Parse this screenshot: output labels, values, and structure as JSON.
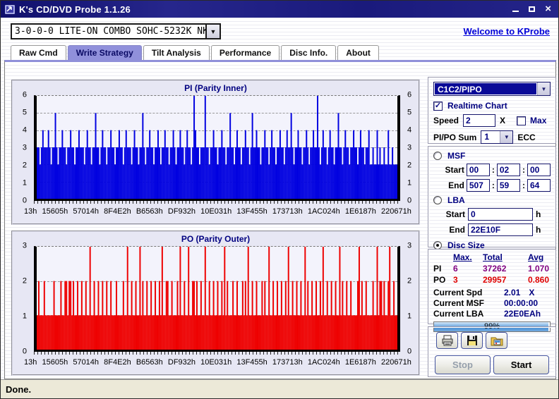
{
  "titlebar": {
    "title": "K's CD/DVD Probe 1.1.26",
    "close_icon": "×"
  },
  "drive_selector": {
    "value": "3-0-0-0 LITE-ON COMBO SOHC-5232K NK07",
    "arrow_icon": "▼"
  },
  "welcome_link": "Welcome to KProbe",
  "tabs": [
    "Raw Cmd",
    "Write Strategy",
    "Tilt Analysis",
    "Performance",
    "Disc Info.",
    "About"
  ],
  "chart_data": [
    {
      "type": "bar",
      "title": "PI (Parity Inner)",
      "color": "#0000e0",
      "ylim": [
        0,
        6
      ],
      "yticks": [
        0,
        1,
        2,
        3,
        4,
        5,
        6
      ],
      "grid": true,
      "x_tick_labels": [
        "13h",
        "15605h",
        "57014h",
        "8F4E2h",
        "B6563h",
        "DF932h",
        "10E031h",
        "13F455h",
        "173713h",
        "1AC024h",
        "1E6187h",
        "220671h"
      ],
      "values": [
        3,
        3,
        2,
        3,
        4,
        3,
        3,
        3,
        4,
        3,
        2,
        3,
        3,
        5,
        3,
        2,
        3,
        3,
        4,
        3,
        3,
        2,
        3,
        3,
        4,
        3,
        3,
        2,
        3,
        3,
        4,
        3,
        3,
        3,
        2,
        3,
        4,
        3,
        3,
        2,
        3,
        3,
        5,
        3,
        3,
        2,
        3,
        4,
        3,
        3,
        2,
        3,
        3,
        4,
        3,
        3,
        2,
        3,
        3,
        4,
        3,
        3,
        2,
        3,
        4,
        3,
        3,
        3,
        2,
        3,
        4,
        3,
        3,
        2,
        3,
        3,
        5,
        3,
        2,
        3,
        3,
        4,
        3,
        3,
        2,
        3,
        3,
        4,
        3,
        2,
        3,
        3,
        4,
        3,
        3,
        2,
        3,
        3,
        4,
        3,
        2,
        3,
        3,
        4,
        3,
        3,
        2,
        3,
        4,
        3,
        3,
        2,
        3,
        6,
        4,
        3,
        3,
        2,
        3,
        3,
        3,
        6,
        3,
        3,
        2,
        3,
        3,
        4,
        3,
        3,
        2,
        3,
        3,
        4,
        3,
        3,
        2,
        3,
        3,
        5,
        3,
        3,
        2,
        3,
        4,
        3,
        3,
        2,
        3,
        3,
        4,
        3,
        3,
        2,
        3,
        5,
        3,
        3,
        4,
        3,
        3,
        2,
        3,
        3,
        4,
        3,
        3,
        2,
        3,
        4,
        3,
        3,
        2,
        3,
        3,
        4,
        3,
        3,
        2,
        3,
        4,
        3,
        3,
        5,
        3,
        2,
        3,
        3,
        4,
        3,
        3,
        2,
        3,
        3,
        4,
        3,
        2,
        3,
        3,
        4,
        3,
        3,
        6,
        3,
        2,
        3,
        4,
        3,
        3,
        2,
        3,
        4,
        3,
        3,
        2,
        3,
        3,
        5,
        3,
        3,
        2,
        3,
        4,
        3,
        3,
        2,
        3,
        3,
        4,
        3,
        3,
        2,
        3,
        4,
        3,
        3,
        2,
        3,
        3,
        4,
        2,
        2,
        3,
        2,
        2,
        4,
        2,
        3,
        2,
        2,
        3,
        2,
        2,
        4,
        2,
        2,
        3,
        2,
        2,
        2
      ]
    },
    {
      "type": "bar",
      "title": "PO (Parity Outer)",
      "color": "#ee0000",
      "ylim": [
        0,
        3
      ],
      "yticks": [
        0,
        1,
        2,
        3
      ],
      "grid": true,
      "x_tick_labels": [
        "13h",
        "15605h",
        "57014h",
        "8F4E2h",
        "B6563h",
        "DF932h",
        "10E031h",
        "13F455h",
        "173713h",
        "1AC024h",
        "1E6187h",
        "220671h"
      ],
      "values": [
        1,
        2,
        1,
        1,
        1,
        2,
        1,
        1,
        1,
        1,
        1,
        1,
        2,
        1,
        1,
        1,
        1,
        2,
        1,
        1,
        2,
        2,
        1,
        2,
        2,
        1,
        2,
        1,
        1,
        2,
        1,
        1,
        2,
        1,
        1,
        2,
        1,
        1,
        3,
        1,
        1,
        2,
        1,
        1,
        2,
        1,
        1,
        2,
        1,
        1,
        2,
        1,
        1,
        2,
        1,
        1,
        1,
        2,
        1,
        1,
        1,
        1,
        2,
        1,
        1,
        3,
        1,
        1,
        2,
        1,
        1,
        2,
        1,
        1,
        3,
        1,
        2,
        1,
        1,
        2,
        1,
        1,
        2,
        1,
        1,
        2,
        1,
        1,
        2,
        1,
        3,
        1,
        1,
        2,
        2,
        1,
        1,
        2,
        1,
        1,
        1,
        2,
        1,
        3,
        1,
        1,
        2,
        1,
        1,
        3,
        1,
        1,
        2,
        2,
        1,
        2,
        1,
        1,
        2,
        1,
        1,
        3,
        1,
        1,
        2,
        1,
        1,
        2,
        1,
        1,
        2,
        1,
        1,
        2,
        1,
        3,
        1,
        2,
        1,
        1,
        1,
        2,
        1,
        1,
        2,
        1,
        1,
        1,
        2,
        1,
        2,
        1,
        3,
        1,
        1,
        2,
        1,
        1,
        2,
        1,
        1,
        1,
        2,
        1,
        2,
        1,
        1,
        3,
        1,
        1,
        2,
        1,
        1,
        2,
        1,
        1,
        2,
        1,
        1,
        2,
        1,
        3,
        1,
        1,
        2,
        1,
        1,
        2,
        1,
        1,
        2,
        1,
        1,
        3,
        1,
        2,
        1,
        1,
        2,
        1,
        1,
        2,
        1,
        1,
        2,
        1,
        3,
        1,
        1,
        2,
        1,
        1,
        2,
        1,
        1,
        2,
        1,
        1,
        3,
        1,
        2,
        1,
        1,
        2,
        1,
        1,
        2,
        1,
        1,
        1,
        1,
        2,
        3,
        1,
        2,
        1,
        1,
        2,
        1,
        1,
        1,
        1,
        2,
        1,
        1,
        3,
        1,
        2,
        2,
        1,
        2,
        1,
        1,
        2,
        3,
        1,
        1,
        2,
        1,
        1
      ]
    }
  ],
  "right_panel": {
    "mode_selector": {
      "value": "C1C2/PIPO",
      "arrow_icon": "▼"
    },
    "realtime_chart": {
      "label": "Realtime Chart",
      "checked": true,
      "check_glyph": "✓"
    },
    "speed": {
      "label": "Speed",
      "value": "2",
      "unit": "X"
    },
    "max_option": {
      "label": "Max",
      "checked": false
    },
    "pipo_sum": {
      "label": "PI/PO Sum",
      "value": "1",
      "suffix": "ECC",
      "arrow_icon": "▼"
    },
    "msf": {
      "label": "MSF",
      "start_label": "Start",
      "end_label": "End",
      "separator": ":",
      "start": [
        "00",
        "02",
        "00"
      ],
      "end": [
        "507",
        "59",
        "64"
      ]
    },
    "lba": {
      "label": "LBA",
      "start_label": "Start",
      "end_label": "End",
      "unit": "h",
      "start": "0",
      "end": "22E10F"
    },
    "disc_size": {
      "label": "Disc Size"
    },
    "stats": {
      "headers": [
        "Max.",
        "Total",
        "Avg"
      ],
      "rows": [
        {
          "name": "PI",
          "max": "6",
          "total": "37262",
          "avg": "1.070"
        },
        {
          "name": "PO",
          "max": "3",
          "total": "29957",
          "avg": "0.860"
        }
      ]
    },
    "current": [
      {
        "label": "Current Spd",
        "value": "2.01",
        "unit": "X"
      },
      {
        "label": "Current MSF",
        "value": "00:00:00",
        "unit": ""
      },
      {
        "label": "Current LBA",
        "value": "22E0EAh",
        "unit": ""
      }
    ],
    "progress": {
      "percent": "99%"
    },
    "buttons": {
      "stop": "Stop",
      "start": "Start"
    }
  },
  "statusbar": {
    "text": "Done."
  }
}
